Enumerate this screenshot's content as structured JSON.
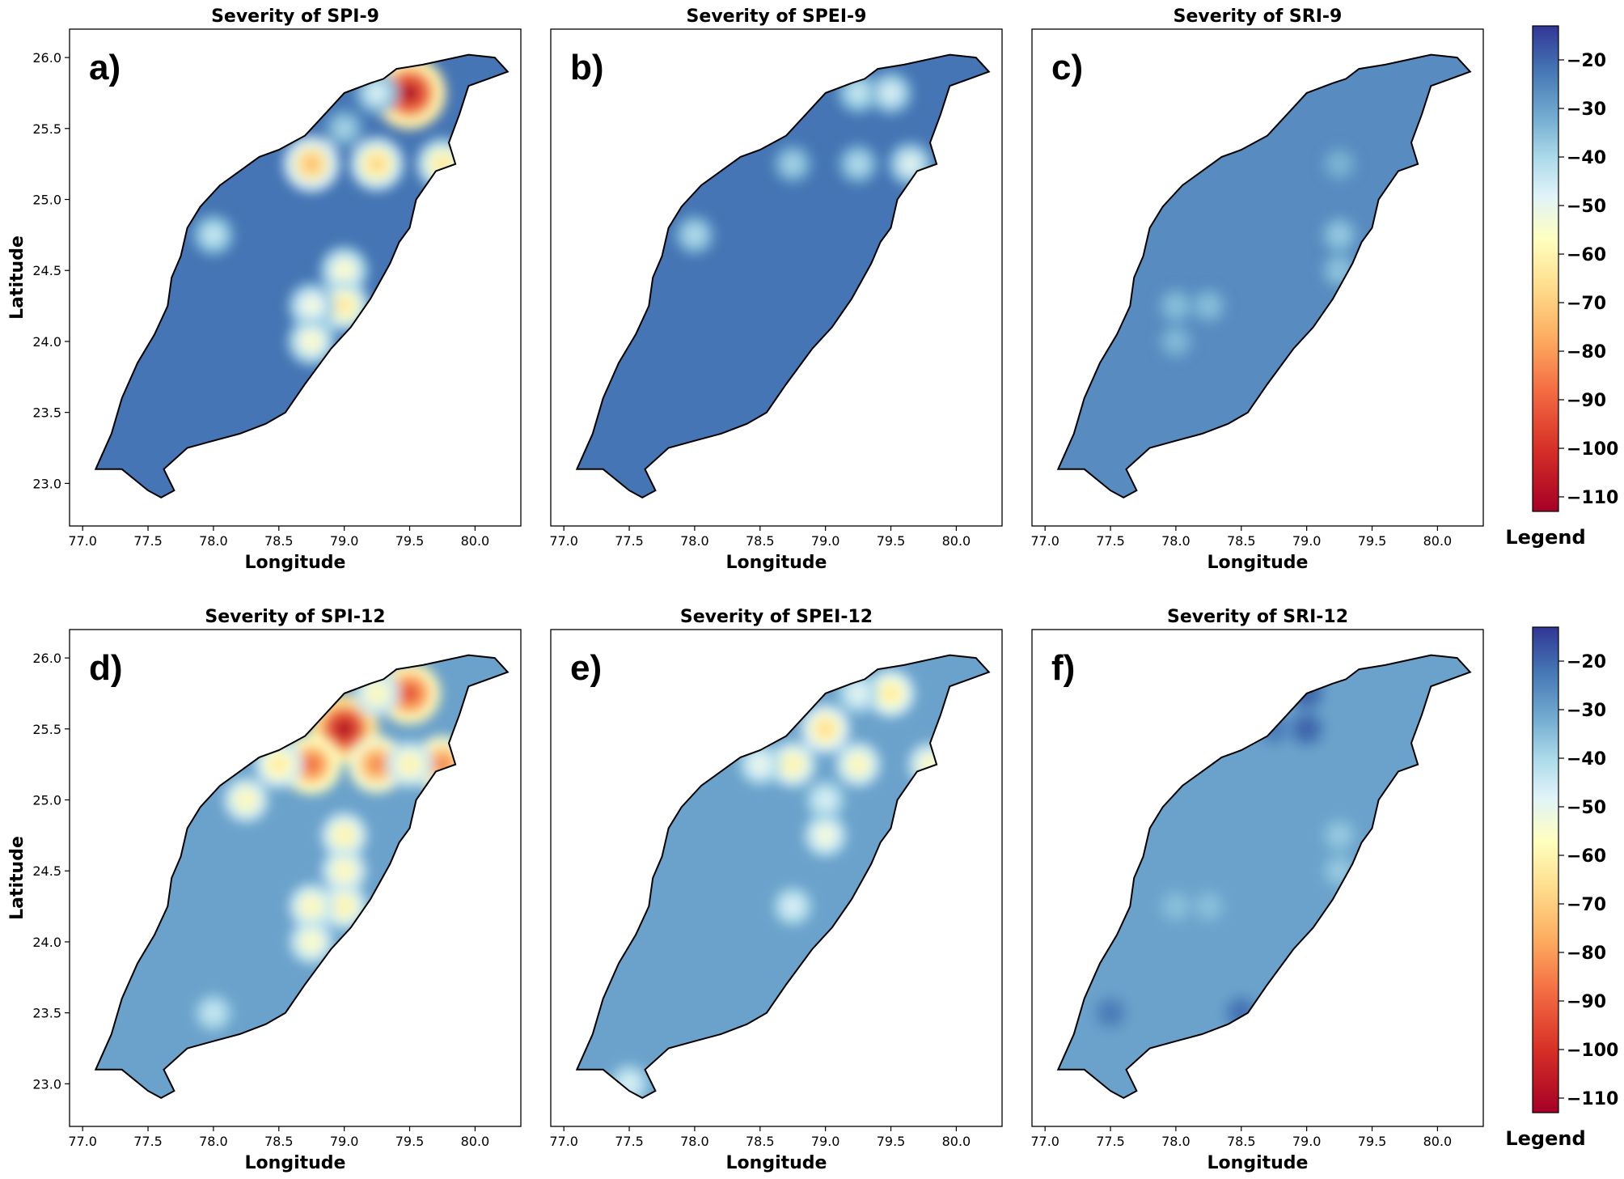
{
  "chart_data": {
    "type": "heatmap",
    "description_units": "drought severity index value",
    "panels": [
      {
        "id": "a",
        "label": "a)",
        "title": "Severity of SPI-9",
        "base": -22,
        "hotspots": [
          {
            "lon": 79.5,
            "lat": 25.75,
            "v": -110
          },
          {
            "lon": 79.25,
            "lat": 25.25,
            "v": -70
          },
          {
            "lon": 78.75,
            "lat": 25.25,
            "v": -75
          },
          {
            "lon": 79.75,
            "lat": 25.25,
            "v": -65
          },
          {
            "lon": 79.0,
            "lat": 24.5,
            "v": -58
          },
          {
            "lon": 79.0,
            "lat": 24.25,
            "v": -65
          },
          {
            "lon": 78.75,
            "lat": 24.25,
            "v": -55
          },
          {
            "lon": 78.75,
            "lat": 24.0,
            "v": -58
          },
          {
            "lon": 79.25,
            "lat": 25.75,
            "v": -48
          },
          {
            "lon": 78.0,
            "lat": 24.75,
            "v": -45
          },
          {
            "lon": 79.0,
            "lat": 25.5,
            "v": -40
          }
        ]
      },
      {
        "id": "b",
        "label": "b)",
        "title": "Severity of SPEI-9",
        "base": -22,
        "hotspots": [
          {
            "lon": 79.25,
            "lat": 25.75,
            "v": -45
          },
          {
            "lon": 79.5,
            "lat": 25.75,
            "v": -48
          },
          {
            "lon": 79.25,
            "lat": 25.25,
            "v": -42
          },
          {
            "lon": 78.75,
            "lat": 25.25,
            "v": -40
          },
          {
            "lon": 78.0,
            "lat": 24.75,
            "v": -42
          },
          {
            "lon": 79.65,
            "lat": 25.25,
            "v": -50
          }
        ]
      },
      {
        "id": "c",
        "label": "c)",
        "title": "Severity of SRI-9",
        "base": -26,
        "hotspots": [
          {
            "lon": 79.25,
            "lat": 24.75,
            "v": -38
          },
          {
            "lon": 79.25,
            "lat": 24.5,
            "v": -37
          },
          {
            "lon": 78.0,
            "lat": 24.25,
            "v": -36
          },
          {
            "lon": 78.25,
            "lat": 24.25,
            "v": -36
          },
          {
            "lon": 78.0,
            "lat": 24.0,
            "v": -35
          },
          {
            "lon": 79.25,
            "lat": 25.25,
            "v": -34
          }
        ]
      },
      {
        "id": "d",
        "label": "d)",
        "title": "Severity of SPI-12",
        "base": -30,
        "hotspots": [
          {
            "lon": 79.0,
            "lat": 25.5,
            "v": -110
          },
          {
            "lon": 79.5,
            "lat": 25.75,
            "v": -95
          },
          {
            "lon": 78.75,
            "lat": 25.25,
            "v": -90
          },
          {
            "lon": 79.25,
            "lat": 25.25,
            "v": -85
          },
          {
            "lon": 79.75,
            "lat": 25.25,
            "v": -85
          },
          {
            "lon": 78.5,
            "lat": 25.25,
            "v": -65
          },
          {
            "lon": 79.0,
            "lat": 24.75,
            "v": -62
          },
          {
            "lon": 79.0,
            "lat": 24.5,
            "v": -60
          },
          {
            "lon": 79.0,
            "lat": 24.25,
            "v": -62
          },
          {
            "lon": 78.75,
            "lat": 24.25,
            "v": -60
          },
          {
            "lon": 78.75,
            "lat": 24.0,
            "v": -58
          },
          {
            "lon": 78.25,
            "lat": 25.0,
            "v": -60
          },
          {
            "lon": 79.25,
            "lat": 25.75,
            "v": -60
          },
          {
            "lon": 79.5,
            "lat": 25.25,
            "v": -62
          },
          {
            "lon": 78.0,
            "lat": 23.5,
            "v": -45
          }
        ]
      },
      {
        "id": "e",
        "label": "e)",
        "title": "Severity of SPEI-12",
        "base": -30,
        "hotspots": [
          {
            "lon": 79.5,
            "lat": 25.75,
            "v": -65
          },
          {
            "lon": 79.0,
            "lat": 25.5,
            "v": -68
          },
          {
            "lon": 78.75,
            "lat": 25.25,
            "v": -62
          },
          {
            "lon": 79.25,
            "lat": 25.25,
            "v": -60
          },
          {
            "lon": 79.8,
            "lat": 25.25,
            "v": -58
          },
          {
            "lon": 79.0,
            "lat": 24.75,
            "v": -55
          },
          {
            "lon": 78.5,
            "lat": 25.25,
            "v": -52
          },
          {
            "lon": 79.0,
            "lat": 25.0,
            "v": -48
          },
          {
            "lon": 79.25,
            "lat": 25.75,
            "v": -50
          },
          {
            "lon": 78.75,
            "lat": 24.25,
            "v": -48
          },
          {
            "lon": 77.5,
            "lat": 23.0,
            "v": -48
          }
        ]
      },
      {
        "id": "f",
        "label": "f)",
        "title": "Severity of SRI-12",
        "base": -30,
        "hotspots": [
          {
            "lon": 79.0,
            "lat": 25.75,
            "v": -18
          },
          {
            "lon": 79.0,
            "lat": 25.5,
            "v": -18
          },
          {
            "lon": 78.75,
            "lat": 25.5,
            "v": -22
          },
          {
            "lon": 78.5,
            "lat": 23.5,
            "v": -20
          },
          {
            "lon": 77.5,
            "lat": 23.5,
            "v": -22
          },
          {
            "lon": 79.25,
            "lat": 24.75,
            "v": -38
          },
          {
            "lon": 79.25,
            "lat": 24.5,
            "v": -38
          },
          {
            "lon": 78.0,
            "lat": 24.25,
            "v": -36
          },
          {
            "lon": 78.25,
            "lat": 24.25,
            "v": -36
          }
        ]
      }
    ],
    "x_axis": {
      "label": "Longitude",
      "range": [
        76.9,
        80.35
      ],
      "ticks": [
        77.0,
        77.5,
        78.0,
        78.5,
        79.0,
        79.5,
        80.0
      ],
      "tick_labels": [
        "77.0",
        "77.5",
        "78.0",
        "78.5",
        "79.0",
        "79.5",
        "80.0"
      ]
    },
    "y_axis": {
      "label": "Latitude",
      "range": [
        22.7,
        26.2
      ],
      "ticks": [
        23.0,
        23.5,
        24.0,
        24.5,
        25.0,
        25.5,
        26.0
      ],
      "tick_labels": [
        "23.0",
        "23.5",
        "24.0",
        "24.5",
        "25.0",
        "25.5",
        "26.0"
      ]
    },
    "colorbar": {
      "label": "Legend",
      "range": [
        -113,
        -13
      ],
      "ticks": [
        -20,
        -30,
        -40,
        -50,
        -60,
        -70,
        -80,
        -90,
        -100,
        -110
      ],
      "tick_labels": [
        "−20",
        "−30",
        "−40",
        "−50",
        "−60",
        "−70",
        "−80",
        "−90",
        "−100",
        "−110"
      ],
      "colormap": "RdYlBu",
      "stops": [
        {
          "v": -113,
          "color": "#a50026"
        },
        {
          "v": -100,
          "color": "#d73027"
        },
        {
          "v": -88,
          "color": "#f46d43"
        },
        {
          "v": -77,
          "color": "#fdae61"
        },
        {
          "v": -66,
          "color": "#fee090"
        },
        {
          "v": -57,
          "color": "#ffffbf"
        },
        {
          "v": -48,
          "color": "#e0f3f8"
        },
        {
          "v": -40,
          "color": "#abd9e9"
        },
        {
          "v": -32,
          "color": "#74add1"
        },
        {
          "v": -22,
          "color": "#4575b4"
        },
        {
          "v": -13,
          "color": "#313695"
        }
      ]
    },
    "region_outline_lonlat": [
      [
        77.1,
        23.1
      ],
      [
        77.3,
        23.1
      ],
      [
        77.5,
        22.95
      ],
      [
        77.6,
        22.9
      ],
      [
        77.7,
        22.95
      ],
      [
        77.62,
        23.1
      ],
      [
        77.8,
        23.25
      ],
      [
        78.0,
        23.3
      ],
      [
        78.2,
        23.35
      ],
      [
        78.4,
        23.42
      ],
      [
        78.55,
        23.5
      ],
      [
        78.7,
        23.7
      ],
      [
        78.9,
        23.95
      ],
      [
        79.05,
        24.1
      ],
      [
        79.2,
        24.3
      ],
      [
        79.35,
        24.55
      ],
      [
        79.42,
        24.7
      ],
      [
        79.5,
        24.8
      ],
      [
        79.55,
        25.0
      ],
      [
        79.7,
        25.2
      ],
      [
        79.85,
        25.25
      ],
      [
        79.8,
        25.4
      ],
      [
        79.88,
        25.6
      ],
      [
        79.95,
        25.8
      ],
      [
        80.1,
        25.85
      ],
      [
        80.25,
        25.9
      ],
      [
        80.15,
        26.0
      ],
      [
        79.95,
        26.02
      ],
      [
        79.75,
        25.98
      ],
      [
        79.6,
        25.95
      ],
      [
        79.4,
        25.92
      ],
      [
        79.3,
        25.85
      ],
      [
        79.2,
        25.82
      ],
      [
        79.0,
        25.75
      ],
      [
        78.85,
        25.6
      ],
      [
        78.7,
        25.45
      ],
      [
        78.5,
        25.35
      ],
      [
        78.35,
        25.3
      ],
      [
        78.2,
        25.2
      ],
      [
        78.05,
        25.1
      ],
      [
        77.9,
        24.95
      ],
      [
        77.8,
        24.8
      ],
      [
        77.75,
        24.6
      ],
      [
        77.68,
        24.45
      ],
      [
        77.65,
        24.25
      ],
      [
        77.55,
        24.05
      ],
      [
        77.42,
        23.85
      ],
      [
        77.3,
        23.6
      ],
      [
        77.22,
        23.35
      ],
      [
        77.1,
        23.1
      ]
    ]
  }
}
